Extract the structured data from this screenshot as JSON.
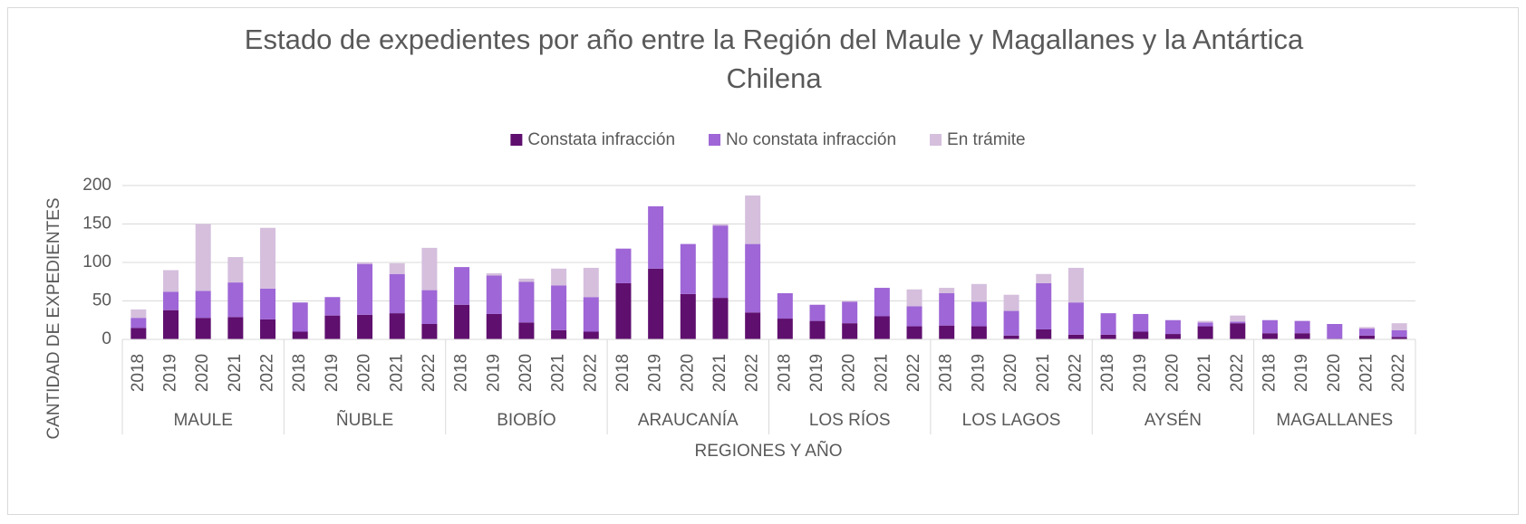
{
  "chart_data": {
    "type": "stacked-bar",
    "title": "Estado de expedientes por año entre la Región del Maule y Magallanes y la Antártica Chilena",
    "y_label": "CANTIDAD DE EXPEDIENTES",
    "x_label": "REGIONES Y AÑO",
    "groups": [
      "MAULE",
      "ÑUBLE",
      "BIOBÍO",
      "ARAUCANÍA",
      "LOS RÍOS",
      "LOS LAGOS",
      "AYSÉN",
      "MAGALLANES"
    ],
    "categories": [
      "2018",
      "2019",
      "2020",
      "2021",
      "2022",
      "2018",
      "2019",
      "2020",
      "2021",
      "2022",
      "2018",
      "2019",
      "2020",
      "2021",
      "2022",
      "2018",
      "2019",
      "2020",
      "2021",
      "2022",
      "2018",
      "2019",
      "2020",
      "2021",
      "2022",
      "2018",
      "2019",
      "2020",
      "2021",
      "2022",
      "2018",
      "2019",
      "2020",
      "2021",
      "2022",
      "2018",
      "2019",
      "2020",
      "2021",
      "2022"
    ],
    "series": [
      {
        "name": "Constata infracción",
        "color": "#5f0f6e",
        "values": [
          15,
          38,
          28,
          29,
          26,
          10,
          31,
          32,
          34,
          20,
          45,
          33,
          22,
          12,
          10,
          73,
          92,
          59,
          54,
          35,
          27,
          24,
          21,
          30,
          17,
          18,
          17,
          5,
          13,
          6,
          6,
          10,
          7,
          17,
          21,
          8,
          8,
          1,
          5,
          3
        ]
      },
      {
        "name": "No constata infracción",
        "color": "#9e66d6",
        "values": [
          13,
          24,
          35,
          45,
          40,
          38,
          24,
          66,
          51,
          44,
          49,
          50,
          53,
          58,
          45,
          45,
          81,
          65,
          94,
          89,
          33,
          21,
          28,
          37,
          26,
          42,
          32,
          32,
          60,
          42,
          28,
          23,
          18,
          5,
          2,
          17,
          16,
          19,
          9,
          9
        ]
      },
      {
        "name": "En trámite",
        "color": "#d5bfdd",
        "values": [
          11,
          28,
          87,
          33,
          79,
          0,
          0,
          2,
          14,
          55,
          0,
          3,
          4,
          22,
          38,
          0,
          0,
          0,
          2,
          63,
          0,
          0,
          1,
          0,
          22,
          7,
          23,
          21,
          12,
          45,
          0,
          0,
          0,
          2,
          8,
          0,
          0,
          0,
          2,
          9
        ]
      }
    ],
    "ylim": [
      0,
      200
    ],
    "yticks": [
      0,
      50,
      100,
      150,
      200
    ],
    "grid": true,
    "legend": "top"
  }
}
